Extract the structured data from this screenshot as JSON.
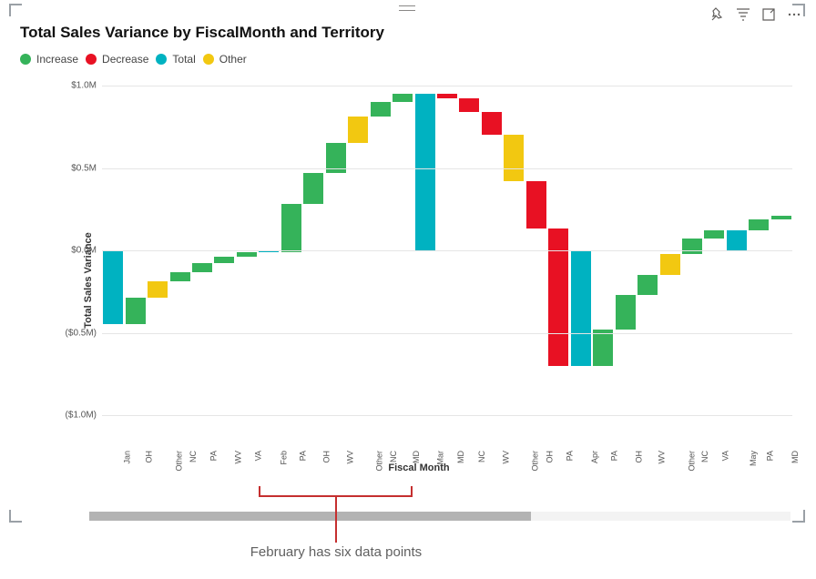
{
  "title": "Total Sales Variance by FiscalMonth and Territory",
  "legend": [
    {
      "label": "Increase",
      "color": "#35b35a"
    },
    {
      "label": "Decrease",
      "color": "#e81123"
    },
    {
      "label": "Total",
      "color": "#00b2c1"
    },
    {
      "label": "Other",
      "color": "#f2c811"
    }
  ],
  "y_axis": {
    "title": "Total Sales Variance",
    "min": -1.0,
    "max": 1.0,
    "step": 0.5,
    "ticks": [
      {
        "v": 1.0,
        "label": "$1.0M"
      },
      {
        "v": 0.5,
        "label": "$0.5M"
      },
      {
        "v": 0.0,
        "label": "$0.0M"
      },
      {
        "v": -0.5,
        "label": "($0.5M)"
      },
      {
        "v": -1.0,
        "label": "($1.0M)"
      }
    ],
    "grid_color": "#e5e5e5"
  },
  "x_axis": {
    "title": "Fiscal Month"
  },
  "colors": {
    "increase": "#35b35a",
    "decrease": "#e81123",
    "total": "#00b2c1",
    "other": "#f2c811",
    "background": "#ffffff"
  },
  "bars": [
    {
      "label": "Jan",
      "type": "total",
      "start": 0.0,
      "end": -0.45
    },
    {
      "label": "OH",
      "type": "increase",
      "start": -0.45,
      "end": -0.29
    },
    {
      "label": "Other",
      "type": "other",
      "start": -0.29,
      "end": -0.19
    },
    {
      "label": "NC",
      "type": "increase",
      "start": -0.19,
      "end": -0.13
    },
    {
      "label": "PA",
      "type": "increase",
      "start": -0.13,
      "end": -0.08
    },
    {
      "label": "WV",
      "type": "increase",
      "start": -0.08,
      "end": -0.04
    },
    {
      "label": "VA",
      "type": "increase",
      "start": -0.04,
      "end": -0.01
    },
    {
      "label": "Feb",
      "type": "total",
      "start": 0.0,
      "end": -0.01
    },
    {
      "label": "PA",
      "type": "increase",
      "start": -0.01,
      "end": 0.28
    },
    {
      "label": "OH",
      "type": "increase",
      "start": 0.28,
      "end": 0.47
    },
    {
      "label": "WV",
      "type": "increase",
      "start": 0.47,
      "end": 0.65
    },
    {
      "label": "Other",
      "type": "other",
      "start": 0.65,
      "end": 0.81
    },
    {
      "label": "NC",
      "type": "increase",
      "start": 0.81,
      "end": 0.9
    },
    {
      "label": "MD",
      "type": "increase",
      "start": 0.9,
      "end": 0.95
    },
    {
      "label": "Mar",
      "type": "total",
      "start": 0.0,
      "end": 0.95
    },
    {
      "label": "MD",
      "type": "decrease",
      "start": 0.95,
      "end": 0.92
    },
    {
      "label": "NC",
      "type": "decrease",
      "start": 0.92,
      "end": 0.84
    },
    {
      "label": "WV",
      "type": "decrease",
      "start": 0.84,
      "end": 0.7
    },
    {
      "label": "Other",
      "type": "other",
      "start": 0.7,
      "end": 0.42
    },
    {
      "label": "OH",
      "type": "decrease",
      "start": 0.42,
      "end": 0.13
    },
    {
      "label": "PA",
      "type": "decrease",
      "start": 0.13,
      "end": -0.7
    },
    {
      "label": "Apr",
      "type": "total",
      "start": 0.0,
      "end": -0.7
    },
    {
      "label": "PA",
      "type": "increase",
      "start": -0.7,
      "end": -0.48
    },
    {
      "label": "OH",
      "type": "increase",
      "start": -0.48,
      "end": -0.27
    },
    {
      "label": "WV",
      "type": "increase",
      "start": -0.27,
      "end": -0.15
    },
    {
      "label": "Other",
      "type": "other",
      "start": -0.15,
      "end": -0.02
    },
    {
      "label": "NC",
      "type": "increase",
      "start": -0.02,
      "end": 0.07
    },
    {
      "label": "VA",
      "type": "increase",
      "start": 0.07,
      "end": 0.12
    },
    {
      "label": "May",
      "type": "total",
      "start": 0.0,
      "end": 0.12
    },
    {
      "label": "PA",
      "type": "increase",
      "start": 0.12,
      "end": 0.19
    },
    {
      "label": "MD",
      "type": "increase",
      "start": 0.19,
      "end": 0.21
    }
  ],
  "bar_gap_ratio": 0.1,
  "scrollbar": {
    "thumb_start": 0.0,
    "thumb_end": 0.63
  },
  "annotation": {
    "text": "February has six data points",
    "from_bar_index": 7,
    "to_bar_index": 13
  },
  "toolbar_icons": [
    "pin-icon",
    "filter-icon",
    "focus-mode-icon",
    "more-icon"
  ]
}
